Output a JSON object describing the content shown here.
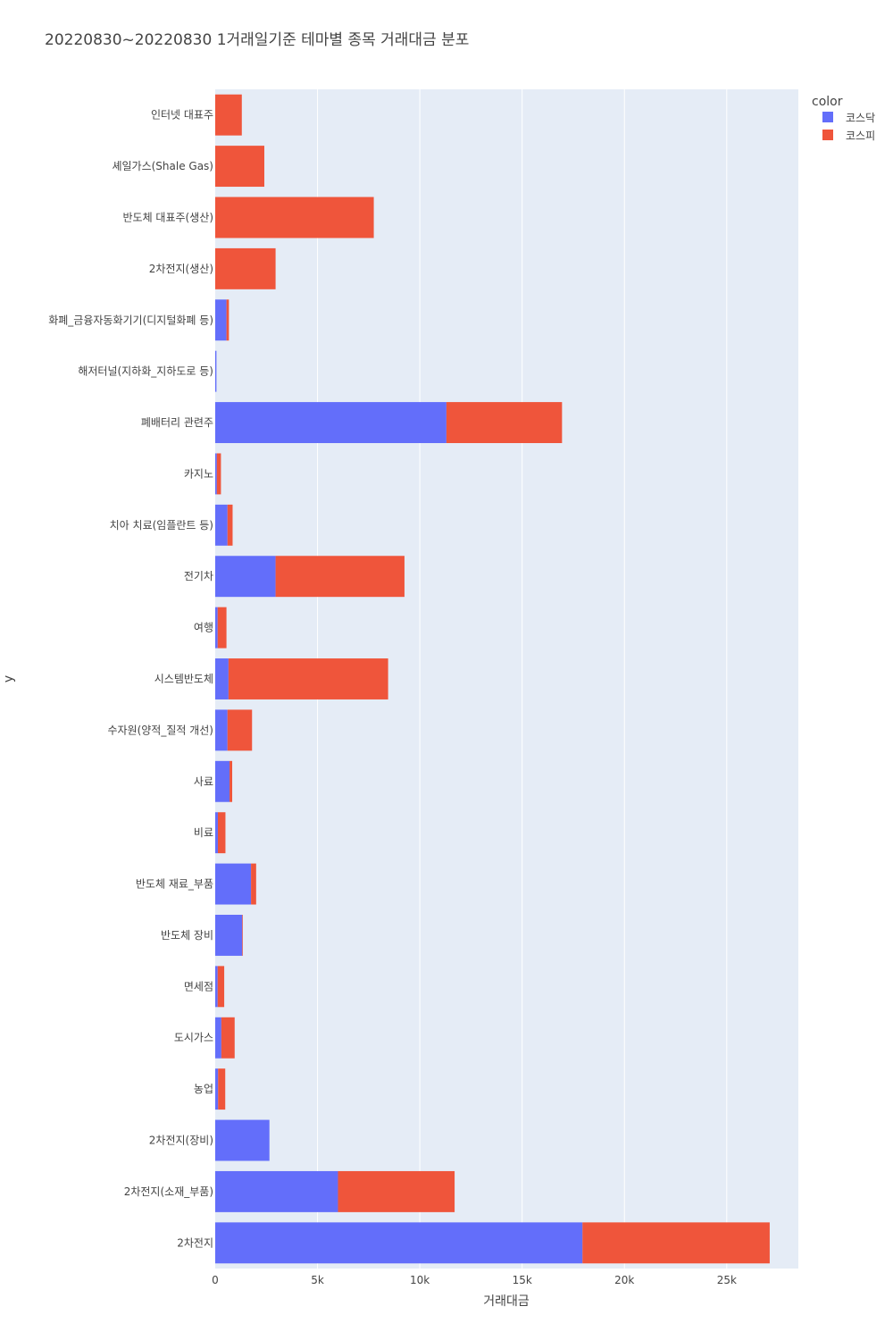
{
  "chart_data": {
    "type": "bar",
    "orientation": "horizontal",
    "barmode": "stack",
    "title": "20220830~20220830 1거래일기준 테마별 종목 거래대금 분포",
    "xlabel": "거래대금",
    "ylabel": "y",
    "xlim": [
      0,
      28500
    ],
    "x_ticks": [
      0,
      5000,
      10000,
      15000,
      20000,
      25000
    ],
    "x_tick_labels": [
      "0",
      "5k",
      "10k",
      "15k",
      "20k",
      "25k"
    ],
    "grid": true,
    "legend": {
      "title": "color",
      "position": "top-right"
    },
    "categories": [
      "인터넷 대표주",
      "셰일가스(Shale Gas)",
      "반도체 대표주(생산)",
      "2차전지(생산)",
      "화폐_금융자동화기기(디지털화폐 등)",
      "해저터널(지하화_지하도로 등)",
      "폐배터리 관련주",
      "카지노",
      "치아 치료(임플란트 등)",
      "전기차",
      "여행",
      "시스템반도체",
      "수자원(양적_질적 개선)",
      "사료",
      "비료",
      "반도체 재료_부품",
      "반도체 장비",
      "면세점",
      "도시가스",
      "농업",
      "2차전지(장비)",
      "2차전지(소재_부품)",
      "2차전지"
    ],
    "series": [
      {
        "name": "코스닥",
        "color": "#636efa",
        "values": [
          0,
          0,
          0,
          0,
          550,
          60,
          11300,
          80,
          600,
          2950,
          120,
          650,
          600,
          700,
          130,
          1750,
          1320,
          120,
          300,
          140,
          2650,
          6000,
          17950
        ]
      },
      {
        "name": "코스피",
        "color": "#ef553b",
        "values": [
          1300,
          2400,
          7750,
          2950,
          120,
          0,
          5650,
          200,
          250,
          6300,
          430,
          7800,
          1200,
          130,
          370,
          250,
          30,
          320,
          650,
          350,
          0,
          5700,
          9150
        ]
      }
    ]
  },
  "colors": {
    "plot_background": "#e5ecf6",
    "grid": "#ffffff"
  }
}
